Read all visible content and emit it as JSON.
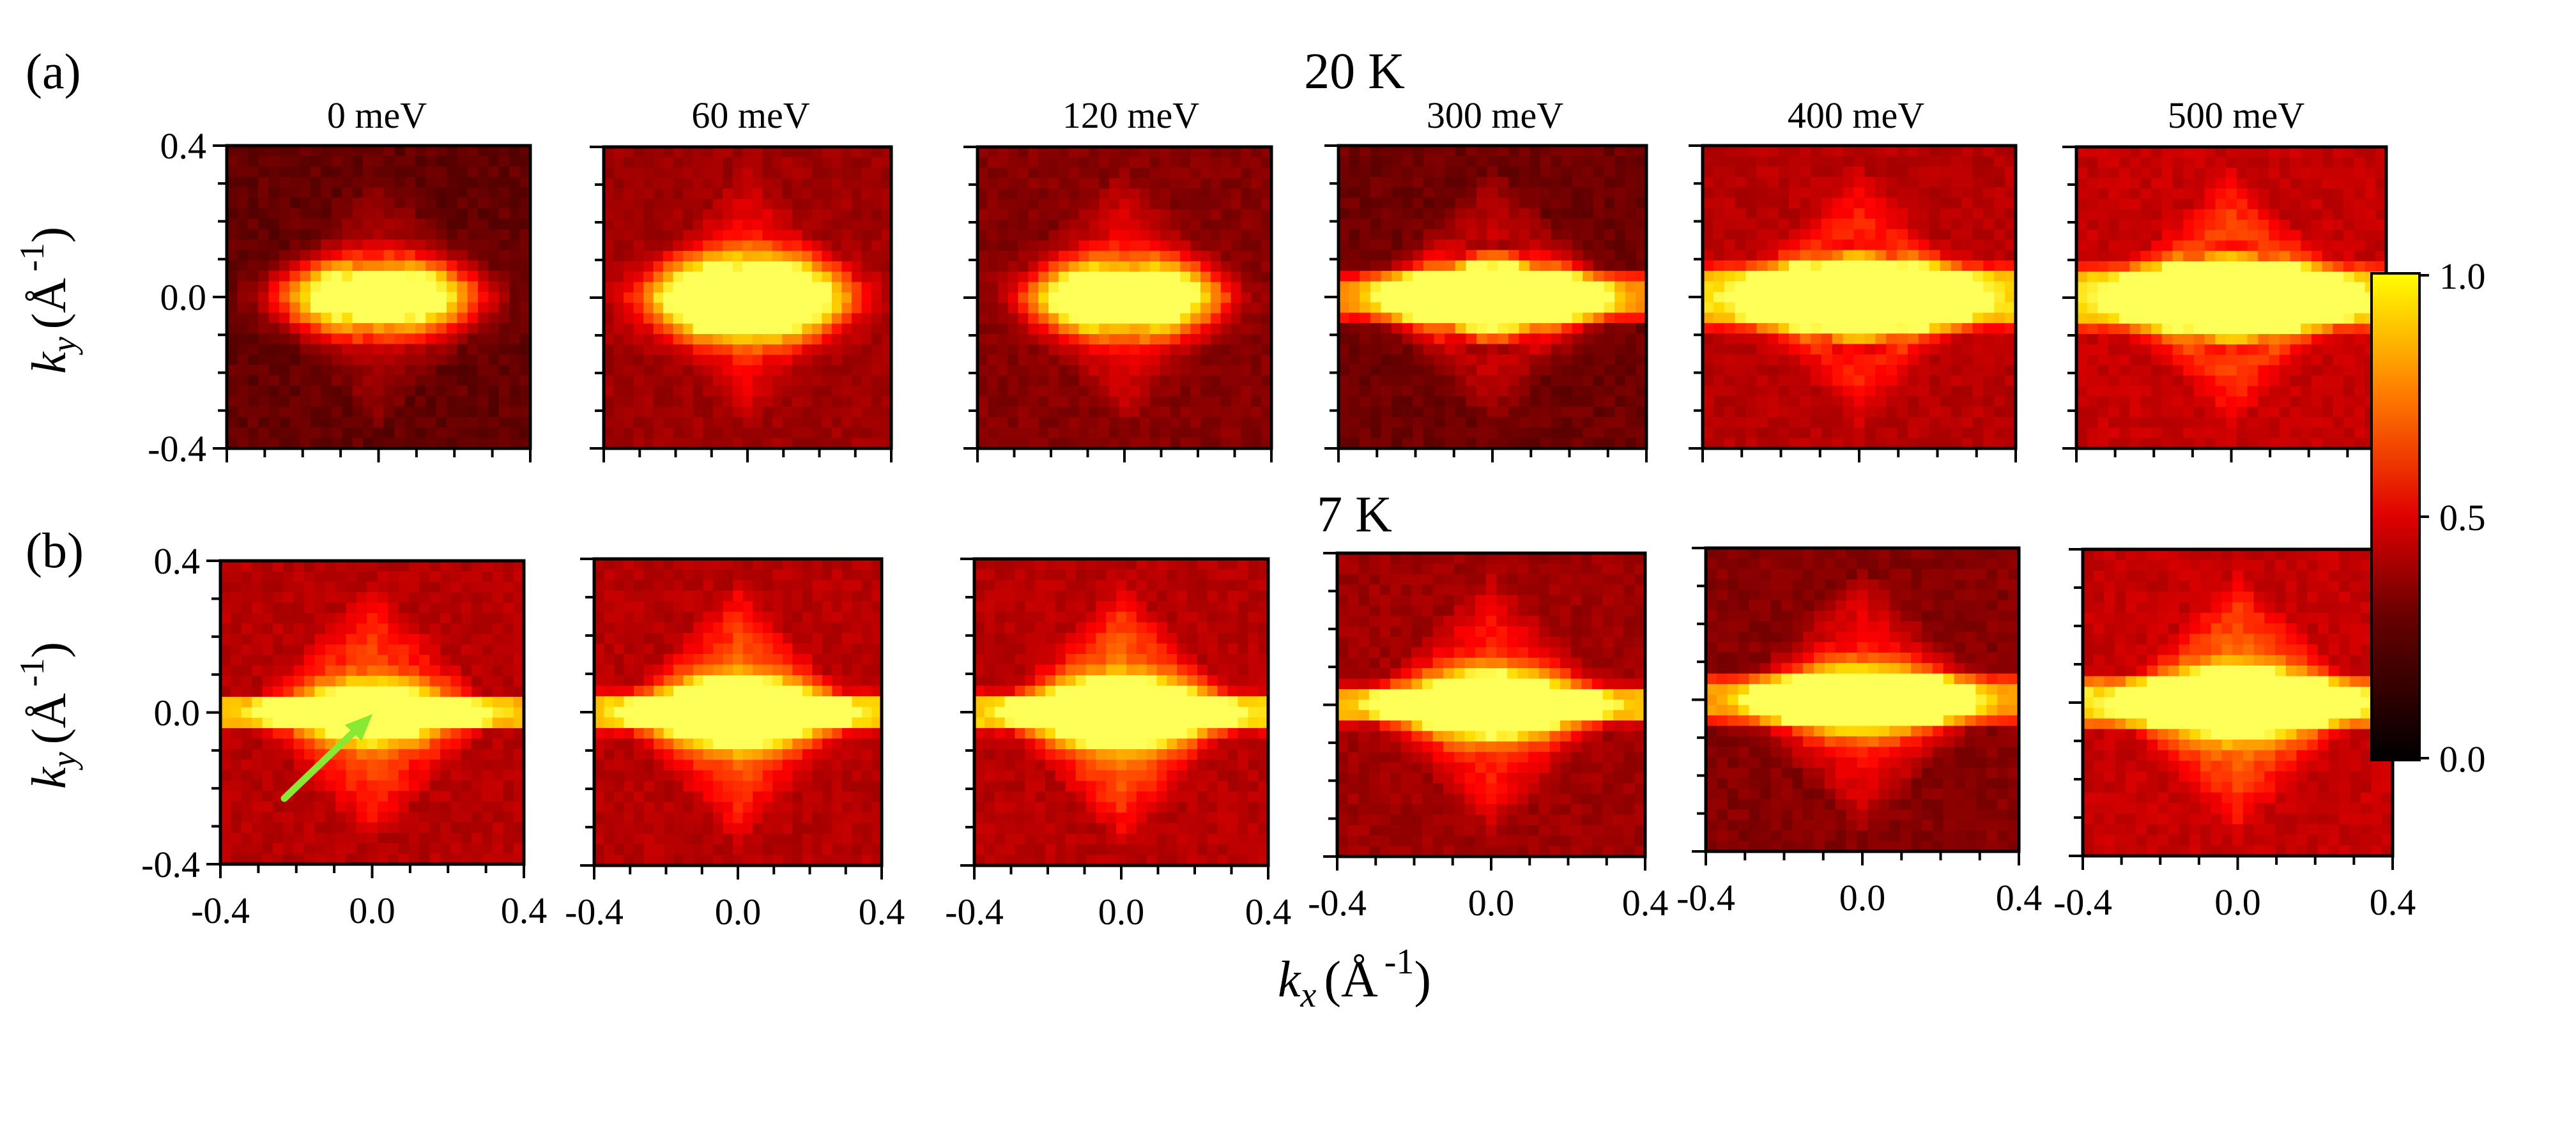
{
  "panel_labels": [
    "(a)",
    "(b)"
  ],
  "row_titles": [
    "20 K",
    "7 K"
  ],
  "column_titles": [
    "0 meV",
    "60 meV",
    "120 meV",
    "300 meV",
    "400 meV",
    "500 meV"
  ],
  "axes": {
    "y_label": {
      "var": "k",
      "sub": "y",
      "unit_open": "(Å",
      "exp": "-1",
      "unit_close": ")"
    },
    "x_label": {
      "var": "k",
      "sub": "x",
      "unit_open": "(Å",
      "exp": "-1",
      "unit_close": ")"
    }
  },
  "colorbar": {
    "ticks": [
      "0.0",
      "0.5",
      "1.0"
    ],
    "tick_values": [
      0.0,
      0.5,
      1.0
    ]
  },
  "annotation": {
    "arrow_color": "#88e832",
    "note": "arrow pointing to 0 meV, 7 K map center"
  },
  "chart_data": {
    "type": "heatmap",
    "xlabel": "kx (Å-1)",
    "ylabel": "ky (Å-1)",
    "xlim": [
      -0.4,
      0.4
    ],
    "ylim": [
      -0.4,
      0.4
    ],
    "x_ticks": [
      -0.4,
      0.0,
      0.4
    ],
    "y_ticks": [
      -0.4,
      0.0,
      0.4
    ],
    "x_tick_labels": [
      "-0.4",
      "0.0",
      "0.4"
    ],
    "y_tick_labels": [
      "-0.4",
      "0.0",
      "0.4"
    ],
    "colormap": "black-red-yellow (hot)",
    "color_range": [
      0.0,
      1.0
    ],
    "rows": [
      {
        "temperature": "20 K",
        "maps": [
          {
            "energy": "0 meV",
            "hole_r": 0.1,
            "ring_r": 0.09,
            "band_hw": 0.0,
            "hole_amp": 1.0,
            "diamond": 0.25,
            "bg": 0.18
          },
          {
            "energy": "60 meV",
            "hole_r": 0.11,
            "ring_r": 0.09,
            "band_hw": 0.0,
            "hole_amp": 1.0,
            "diamond": 0.35,
            "bg": 0.3
          },
          {
            "energy": "120 meV",
            "hole_r": 0.1,
            "ring_r": 0.09,
            "band_hw": 0.0,
            "hole_amp": 0.95,
            "diamond": 0.35,
            "bg": 0.25
          },
          {
            "energy": "300 meV",
            "hole_r": 0.1,
            "ring_r": 0.14,
            "band_hw": 0.06,
            "hole_amp": 1.0,
            "diamond": 0.35,
            "bg": 0.2
          },
          {
            "energy": "400 meV",
            "hole_r": 0.1,
            "ring_r": 0.14,
            "band_hw": 0.08,
            "hole_amp": 1.0,
            "diamond": 0.4,
            "bg": 0.35
          },
          {
            "energy": "500 meV",
            "hole_r": 0.1,
            "ring_r": 0.14,
            "band_hw": 0.08,
            "hole_amp": 0.9,
            "diamond": 0.45,
            "bg": 0.38
          }
        ]
      },
      {
        "temperature": "7 K",
        "maps": [
          {
            "energy": "0 meV",
            "hole_r": 0.08,
            "ring_r": 0.0,
            "band_hw": 0.04,
            "hole_amp": 0.8,
            "diamond": 0.45,
            "bg": 0.35
          },
          {
            "energy": "60 meV",
            "hole_r": 0.09,
            "ring_r": 0.03,
            "band_hw": 0.05,
            "hole_amp": 0.9,
            "diamond": 0.5,
            "bg": 0.35
          },
          {
            "energy": "120 meV",
            "hole_r": 0.09,
            "ring_r": 0.0,
            "band_hw": 0.05,
            "hole_amp": 0.85,
            "diamond": 0.55,
            "bg": 0.35
          },
          {
            "energy": "300 meV",
            "hole_r": 0.09,
            "ring_r": 0.0,
            "band_hw": 0.05,
            "hole_amp": 0.85,
            "diamond": 0.45,
            "bg": 0.3
          },
          {
            "energy": "400 meV",
            "hole_r": 0.09,
            "ring_r": 0.03,
            "band_hw": 0.06,
            "hole_amp": 0.85,
            "diamond": 0.45,
            "bg": 0.25
          },
          {
            "energy": "500 meV",
            "hole_r": 0.09,
            "ring_r": 0.03,
            "band_hw": 0.06,
            "hole_amp": 0.85,
            "diamond": 0.5,
            "bg": 0.38
          }
        ]
      }
    ]
  }
}
